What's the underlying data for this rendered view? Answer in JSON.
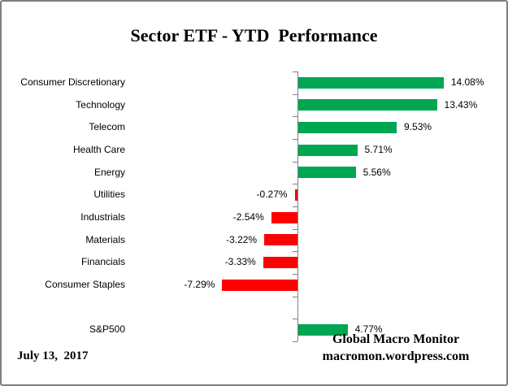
{
  "chart_data": {
    "type": "bar",
    "orientation": "horizontal",
    "title": "Sector ETF - YTD  Performance",
    "categories": [
      "Consumer Discretionary",
      "Technology",
      "Telecom",
      "Health Care",
      "Energy",
      "Utilities",
      "Industrials",
      "Materials",
      "Financials",
      "Consumer Staples",
      "",
      "S&P500"
    ],
    "values": [
      14.08,
      13.43,
      9.53,
      5.71,
      5.56,
      -0.27,
      -2.54,
      -3.22,
      -3.33,
      -7.29,
      null,
      4.77
    ],
    "value_labels": [
      "14.08%",
      "13.43%",
      "9.53%",
      "5.71%",
      "5.56%",
      "-0.27%",
      "-2.54%",
      "-3.22%",
      "-3.33%",
      "-7.29%",
      "",
      "4.77%"
    ],
    "positive_color": "#00A651",
    "negative_color": "#FF0000",
    "axis_color": "#808080",
    "xlabel": "",
    "ylabel": "",
    "grid": "off",
    "legend": "none"
  },
  "footer": {
    "date": "July 13,  2017",
    "source_line1": "Global Macro Monitor",
    "source_line2": "macromon.wordpress.com"
  }
}
